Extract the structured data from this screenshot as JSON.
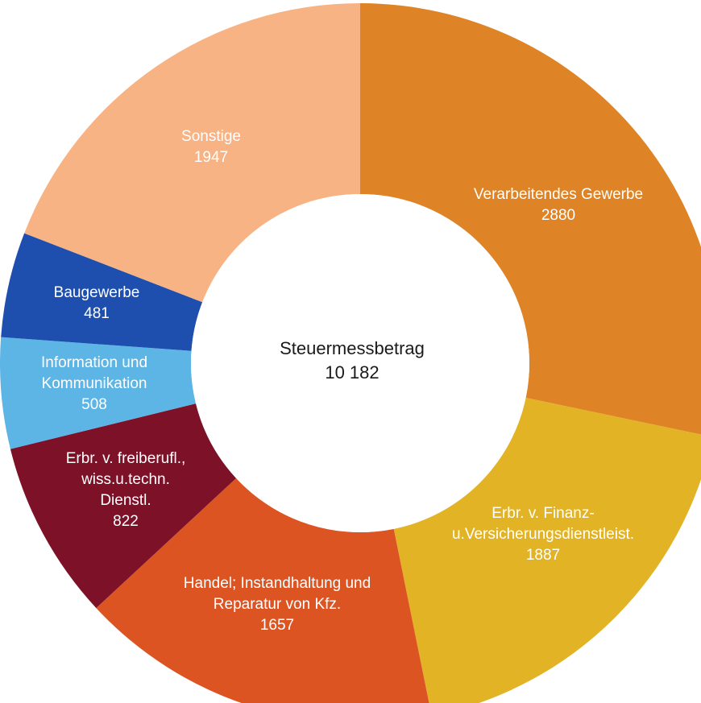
{
  "chart_data": {
    "type": "pie",
    "donut": true,
    "center_label": "Steuermessbetrag",
    "center_value": "10 182",
    "slices": [
      {
        "lines": [
          "Verarbeitendes Gewerbe"
        ],
        "value_label": "2880",
        "value": 2880,
        "color": "#DE8426"
      },
      {
        "lines": [
          "Erbr. v. Finanz-",
          "u.Versicherungsdienstleist."
        ],
        "value_label": "1887",
        "value": 1887,
        "color": "#E3B326"
      },
      {
        "lines": [
          "Handel; Instandhaltung und",
          "Reparatur von Kfz."
        ],
        "value_label": "1657",
        "value": 1657,
        "color": "#DD5423"
      },
      {
        "lines": [
          "Erbr. v. freiberufl.,",
          "wiss.u.techn.",
          "Dienstl."
        ],
        "value_label": "822",
        "value": 822,
        "color": "#7C1128"
      },
      {
        "lines": [
          "Information und",
          "Kommunikation"
        ],
        "value_label": "508",
        "value": 508,
        "color": "#5DB5E5"
      },
      {
        "lines": [
          "Baugewerbe"
        ],
        "value_label": "481",
        "value": 481,
        "color": "#1F4FAE"
      },
      {
        "lines": [
          "Sonstige"
        ],
        "value_label": "1947",
        "value": 1947,
        "color": "#F8B384"
      }
    ]
  }
}
